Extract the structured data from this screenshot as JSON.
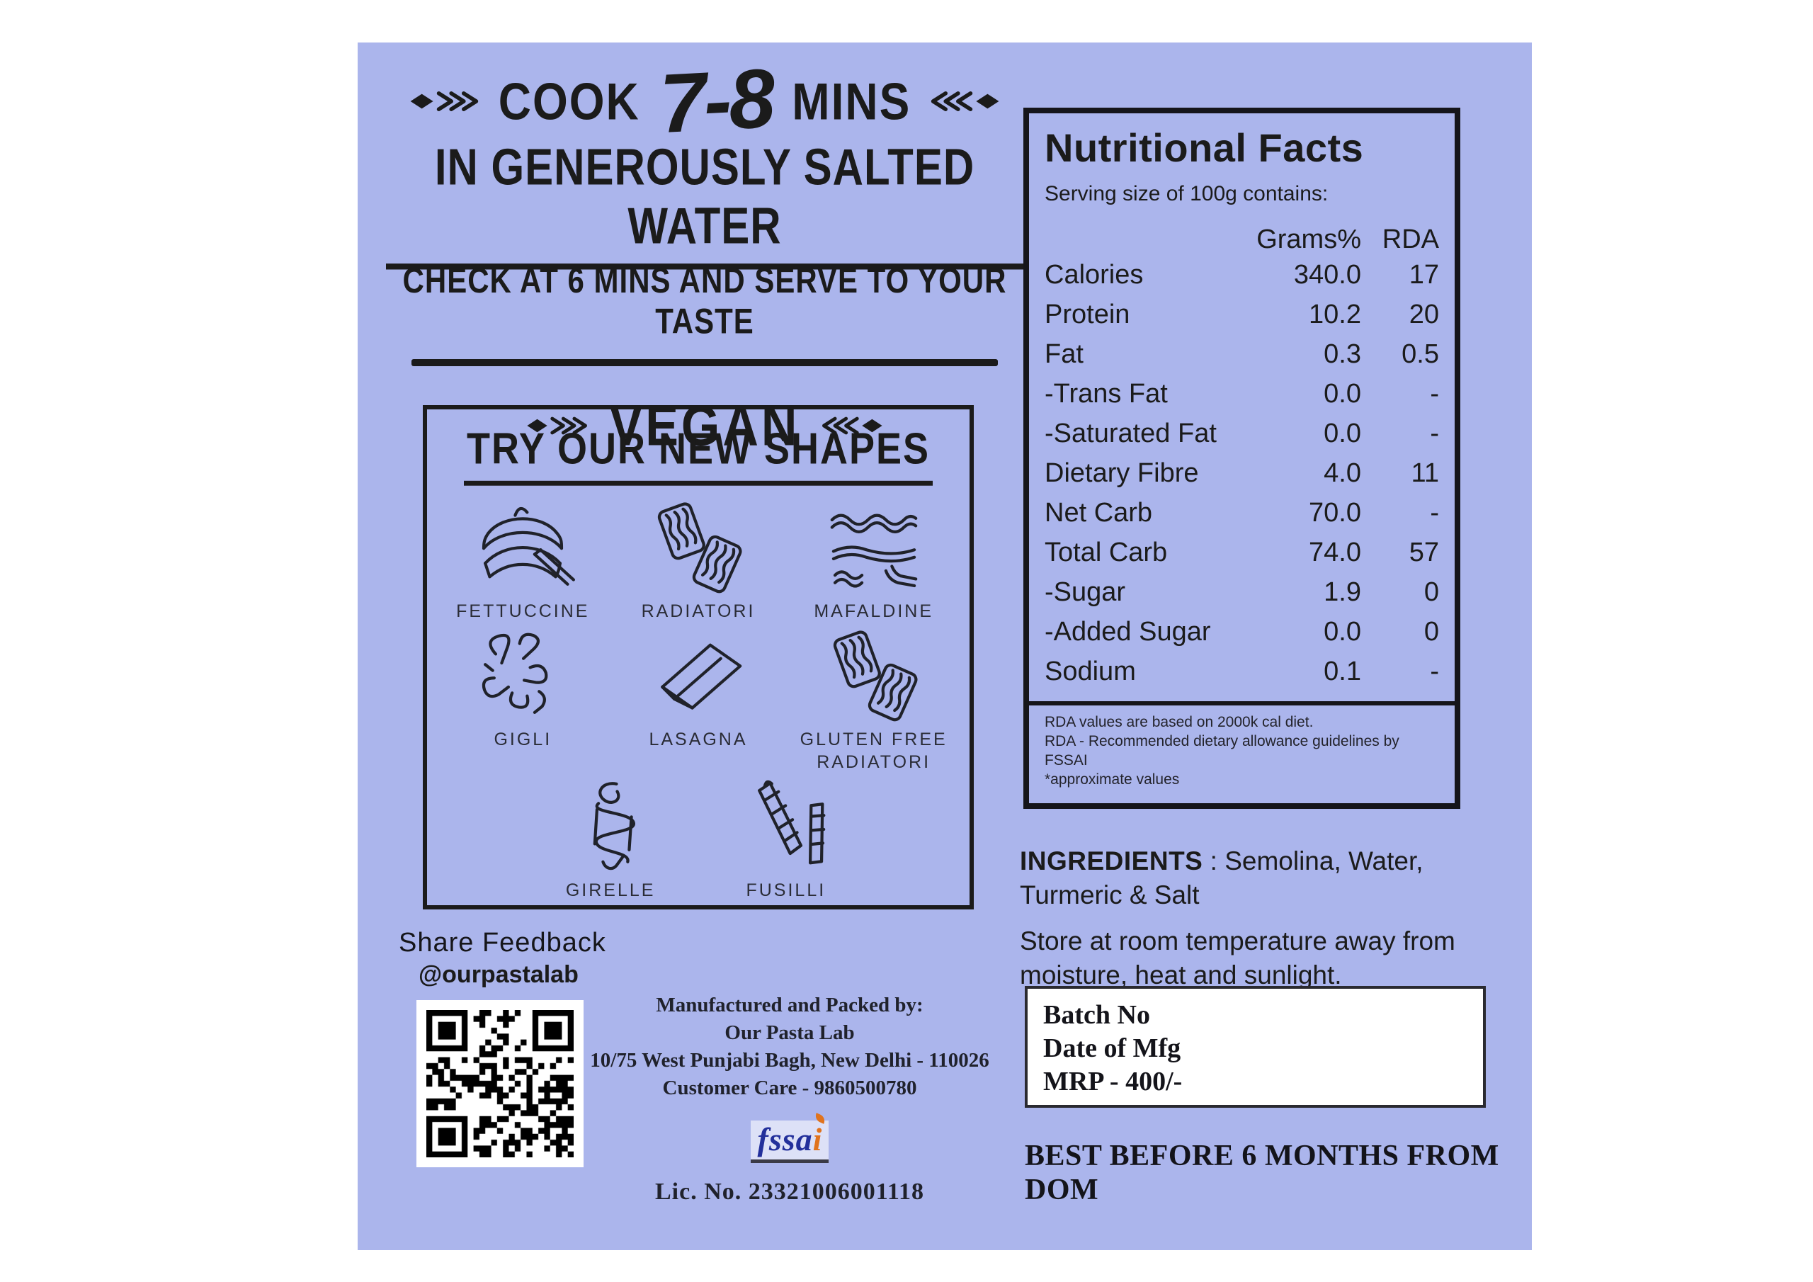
{
  "panel": {
    "cooking": {
      "line1_prefix": "COOK",
      "line1_time": "7-8",
      "line1_suffix": "MINS",
      "line2": "IN GENEROUSLY SALTED WATER",
      "line3": "CHECK AT 6 MINS AND SERVE TO YOUR TASTE",
      "vegan": "VEGAN"
    },
    "shapes": {
      "title": "TRY OUR NEW SHAPES",
      "items": [
        {
          "label": "FETTUCCINE",
          "icon": "fettuccine"
        },
        {
          "label": "RADIATORI",
          "icon": "radiatori"
        },
        {
          "label": "MAFALDINE",
          "icon": "mafaldine"
        },
        {
          "label": "GIGLI",
          "icon": "gigli"
        },
        {
          "label": "LASAGNA",
          "icon": "lasagna"
        },
        {
          "label": "GLUTEN FREE RADIATORI",
          "icon": "radiatori"
        },
        {
          "label": "GIRELLE",
          "icon": "girelle"
        },
        {
          "label": "FUSILLI",
          "icon": "fusilli"
        }
      ]
    },
    "feedback": {
      "title": "Share Feedback",
      "handle": "@ourpastalab"
    },
    "manufacturer": {
      "line1": "Manufactured and Packed by:",
      "line2": "Our Pasta Lab",
      "line3": "10/75 West Punjabi Bagh, New Delhi - 110026",
      "line4": "Customer Care - 9860500780",
      "fssai_part1": "fssa",
      "fssai_part2": "i",
      "license": "Lic. No. 23321006001118"
    },
    "nutrition": {
      "title": "Nutritional Facts",
      "serving": "Serving size of 100g contains:",
      "col_grams": "Grams%",
      "col_rda": "RDA",
      "rows": [
        {
          "label": "Calories",
          "grams": "340.0",
          "rda": "17"
        },
        {
          "label": "Protein",
          "grams": "10.2",
          "rda": "20"
        },
        {
          "label": "Fat",
          "grams": "0.3",
          "rda": "0.5"
        },
        {
          "label": "-Trans Fat",
          "grams": "0.0",
          "rda": "-"
        },
        {
          "label": "-Saturated Fat",
          "grams": "0.0",
          "rda": "-"
        },
        {
          "label": "Dietary Fibre",
          "grams": "4.0",
          "rda": "11"
        },
        {
          "label": "Net Carb",
          "grams": "70.0",
          "rda": "-"
        },
        {
          "label": "Total Carb",
          "grams": "74.0",
          "rda": "57"
        },
        {
          "label": "-Sugar",
          "grams": "1.9",
          "rda": "0"
        },
        {
          "label": "-Added Sugar",
          "grams": "0.0",
          "rda": "0"
        },
        {
          "label": "Sodium",
          "grams": "0.1",
          "rda": "-"
        }
      ],
      "footnotes": [
        "RDA values are based on 2000k cal diet.",
        "RDA - Recommended dietary allowance guidelines by FSSAI",
        "*approximate values"
      ]
    },
    "ingredients": {
      "label": "INGREDIENTS",
      "value": " : Semolina, Water, Turmeric & Salt"
    },
    "storage": "Store at room temperature away from moisture, heat and sunlight.",
    "batch": {
      "line1": "Batch No",
      "line2": "Date of Mfg",
      "line3": "MRP - 400/-"
    },
    "best_before": "BEST BEFORE 6 MONTHS FROM DOM",
    "colors": {
      "panel_bg": "#abb5ec",
      "ink": "#1b1b1b",
      "fssai_blue": "#23309b",
      "fssai_orange": "#e0731d"
    }
  }
}
